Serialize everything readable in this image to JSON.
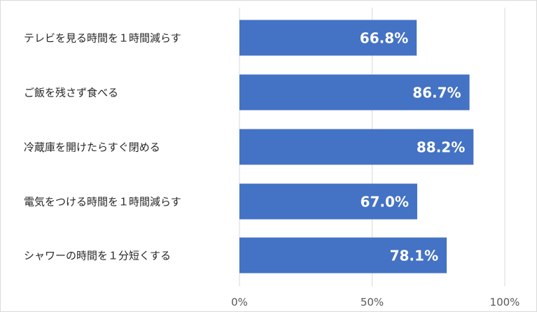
{
  "chart_data": {
    "type": "bar",
    "orientation": "horizontal",
    "categories": [
      "テレビを見る時間を１時間減らす",
      "ご飯を残さず食べる",
      "冷蔵庫を開けたらすぐ閉める",
      "電気をつける時間を１時間減らす",
      "シャワーの時間を１分短くする"
    ],
    "values": [
      66.8,
      86.7,
      88.2,
      67.0,
      78.1
    ],
    "value_labels": [
      "66.8%",
      "86.7%",
      "88.2%",
      "67.0%",
      "78.1%"
    ],
    "xlim": [
      0,
      100
    ],
    "x_ticks": [
      0,
      50,
      100
    ],
    "x_tick_labels": [
      "0%",
      "50%",
      "100%"
    ],
    "grid": true,
    "legend": "none",
    "title": "",
    "xlabel": "",
    "ylabel": "",
    "colors": {
      "bar": "#4472c4",
      "gridline": "#d9d9d9",
      "value_text": "#ffffff",
      "category_text": "#262626",
      "tick_text": "#595959"
    }
  }
}
